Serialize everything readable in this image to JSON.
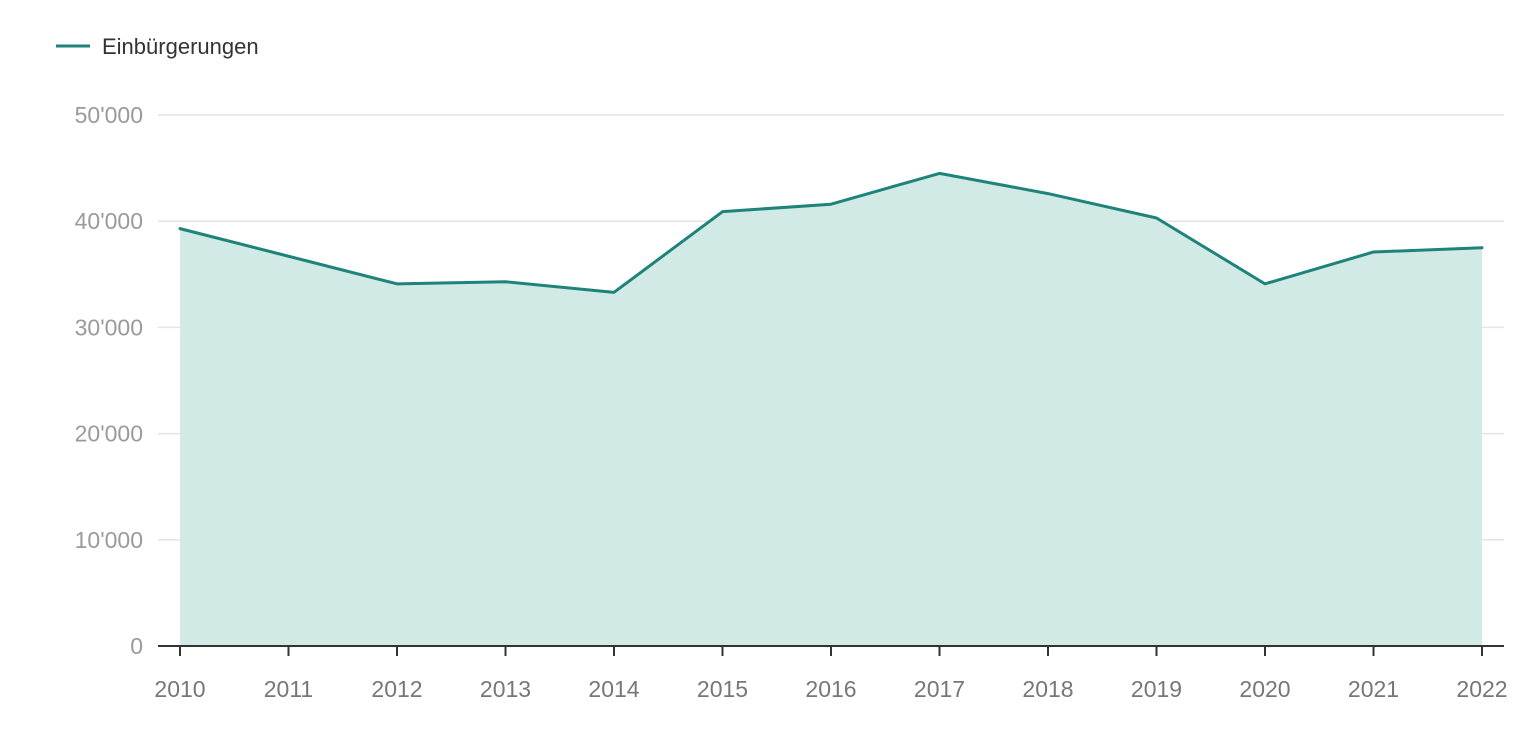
{
  "chart_data": {
    "type": "area",
    "legend_position": "top-left",
    "grid": true,
    "x": [
      "2010",
      "2011",
      "2012",
      "2013",
      "2014",
      "2015",
      "2016",
      "2017",
      "2018",
      "2019",
      "2020",
      "2021",
      "2022"
    ],
    "series": [
      {
        "name": "Einbürgerungen",
        "color": "#1e8378",
        "fill": "#d1eae6",
        "values": [
          39300,
          36700,
          34100,
          34300,
          33300,
          40900,
          41600,
          44500,
          42600,
          40300,
          34100,
          37100,
          37500
        ]
      }
    ],
    "ylim": [
      0,
      50000
    ],
    "yticks": [
      0,
      10000,
      20000,
      30000,
      40000,
      50000
    ],
    "ytick_labels": [
      "0",
      "10'000",
      "20'000",
      "30'000",
      "40'000",
      "50'000"
    ],
    "title": "",
    "xlabel": "",
    "ylabel": ""
  }
}
